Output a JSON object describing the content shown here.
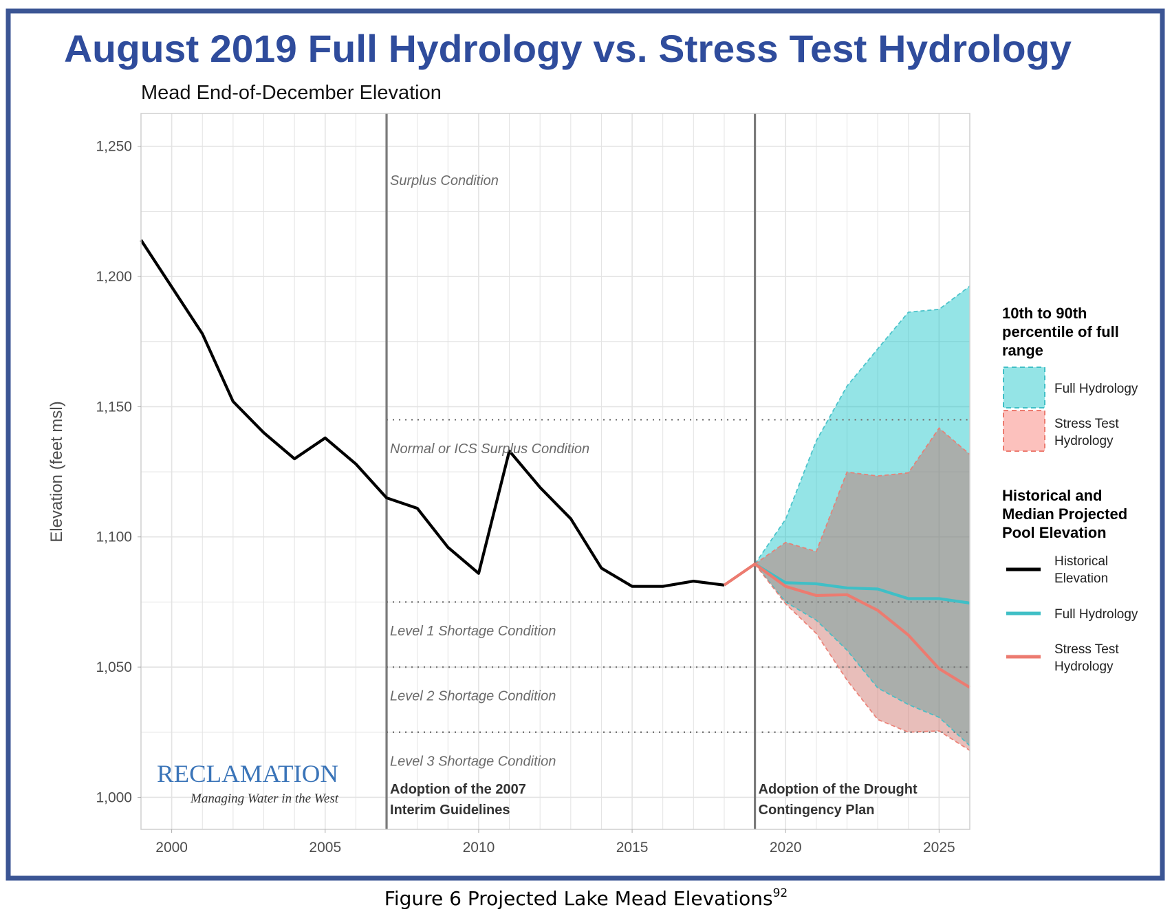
{
  "title": "August 2019 Full Hydrology vs. Stress Test Hydrology",
  "caption": "Figure 6 Projected Lake Mead Elevations",
  "caption_superscript": "92",
  "logo": {
    "name": "RECLAMATION",
    "tagline": "Managing Water in the West",
    "color": "#3a74b8"
  },
  "colors": {
    "title": "#2f4c9c",
    "frame": "#3b5594",
    "historical": "#000000",
    "full": "#00bfc4",
    "stress": "#f8766d"
  },
  "chart_data": {
    "type": "line",
    "title": "Mead End-of-December Elevation",
    "xlabel": "",
    "ylabel": "Elevation (feet msl)",
    "xlim": [
      1999,
      2026
    ],
    "ylim": [
      987.7,
      1262.6
    ],
    "x_ticks": [
      2000,
      2005,
      2010,
      2015,
      2020,
      2025
    ],
    "x_tick_labels": [
      "2000",
      "2005",
      "2010",
      "2015",
      "2020",
      "2025"
    ],
    "y_ticks": [
      1000,
      1050,
      1100,
      1150,
      1200,
      1250
    ],
    "y_tick_labels": [
      "1,000",
      "1,050",
      "1,100",
      "1,150",
      "1,200",
      "1,250"
    ],
    "grid": true,
    "legend_position": "right",
    "legend": {
      "band_title": "10th to 90th percentile of full range",
      "band_items": [
        "Full Hydrology",
        "Stress Test Hydrology"
      ],
      "line_title": "Historical and Median Projected Pool Elevation",
      "line_items": [
        "Historical Elevation",
        "Full Hydrology",
        "Stress Test Hydrology"
      ]
    },
    "series": [
      {
        "name": "Historical Elevation",
        "kind": "line",
        "color": "#000000",
        "x": [
          1999,
          2000,
          2001,
          2002,
          2003,
          2004,
          2005,
          2006,
          2007,
          2008,
          2009,
          2010,
          2011,
          2012,
          2013,
          2014,
          2015,
          2016,
          2017,
          2018
        ],
        "y": [
          1214,
          1196,
          1178,
          1152,
          1140,
          1130,
          1138,
          1128,
          1115,
          1111,
          1096,
          1086,
          1133,
          1119,
          1107,
          1088,
          1081,
          1081,
          1083,
          1081.5
        ]
      },
      {
        "name": "Full Hydrology",
        "kind": "line",
        "color": "#3fbfc6",
        "x": [
          2019,
          2020,
          2021,
          2022,
          2023,
          2024,
          2025,
          2026
        ],
        "y": [
          1089.6,
          1082.4,
          1082,
          1080.4,
          1080,
          1076.3,
          1076.3,
          1074.6
        ]
      },
      {
        "name": "Stress Test Hydrology",
        "kind": "line",
        "color": "#ec7b70",
        "x": [
          2018,
          2019,
          2020,
          2021,
          2022,
          2023,
          2024,
          2025,
          2026
        ],
        "y": [
          1081.5,
          1089.6,
          1081,
          1077.5,
          1077.8,
          1071.8,
          1062.3,
          1049.4,
          1042.2
        ]
      }
    ],
    "bands": [
      {
        "name": "Full Hydrology",
        "color": "#00bfc4",
        "x": [
          2019,
          2020,
          2021,
          2022,
          2023,
          2024,
          2025,
          2026
        ],
        "upper": [
          1089.6,
          1106.8,
          1136.9,
          1157.9,
          1172.2,
          1186.3,
          1187.4,
          1196.3
        ],
        "lower": [
          1089.6,
          1075,
          1068,
          1056.5,
          1042,
          1035.6,
          1030.7,
          1019.8
        ]
      },
      {
        "name": "Stress Test Hydrology",
        "color": "#f8766d",
        "x": [
          2019,
          2020,
          2021,
          2022,
          2023,
          2024,
          2025,
          2026
        ],
        "upper": [
          1089.6,
          1097.9,
          1094.4,
          1124.9,
          1123.4,
          1124.6,
          1141.8,
          1131.7
        ],
        "lower": [
          1089.6,
          1074.3,
          1062.9,
          1045,
          1029.9,
          1025,
          1025.5,
          1018
        ]
      }
    ],
    "reference_lines": {
      "vertical": [
        2007,
        2019
      ],
      "horizontal": [
        1145,
        1075,
        1050,
        1025
      ]
    },
    "annotations": [
      {
        "text": "Surplus Condition",
        "x": 2007,
        "y": 1237
      },
      {
        "text": "Normal or ICS Surplus Condition",
        "x": 2007,
        "y": 1134
      },
      {
        "text": "Level 1 Shortage Condition",
        "x": 2007,
        "y": 1064
      },
      {
        "text": "Level 2 Shortage Condition",
        "x": 2007,
        "y": 1039
      },
      {
        "text": "Level 3 Shortage Condition",
        "x": 2007,
        "y": 1014
      }
    ],
    "events": [
      {
        "x": 2007,
        "lines": [
          "Adoption of the 2007",
          "Interim Guidelines"
        ]
      },
      {
        "x": 2019,
        "lines": [
          "Adoption of the Drought",
          "Contingency Plan"
        ]
      }
    ]
  }
}
